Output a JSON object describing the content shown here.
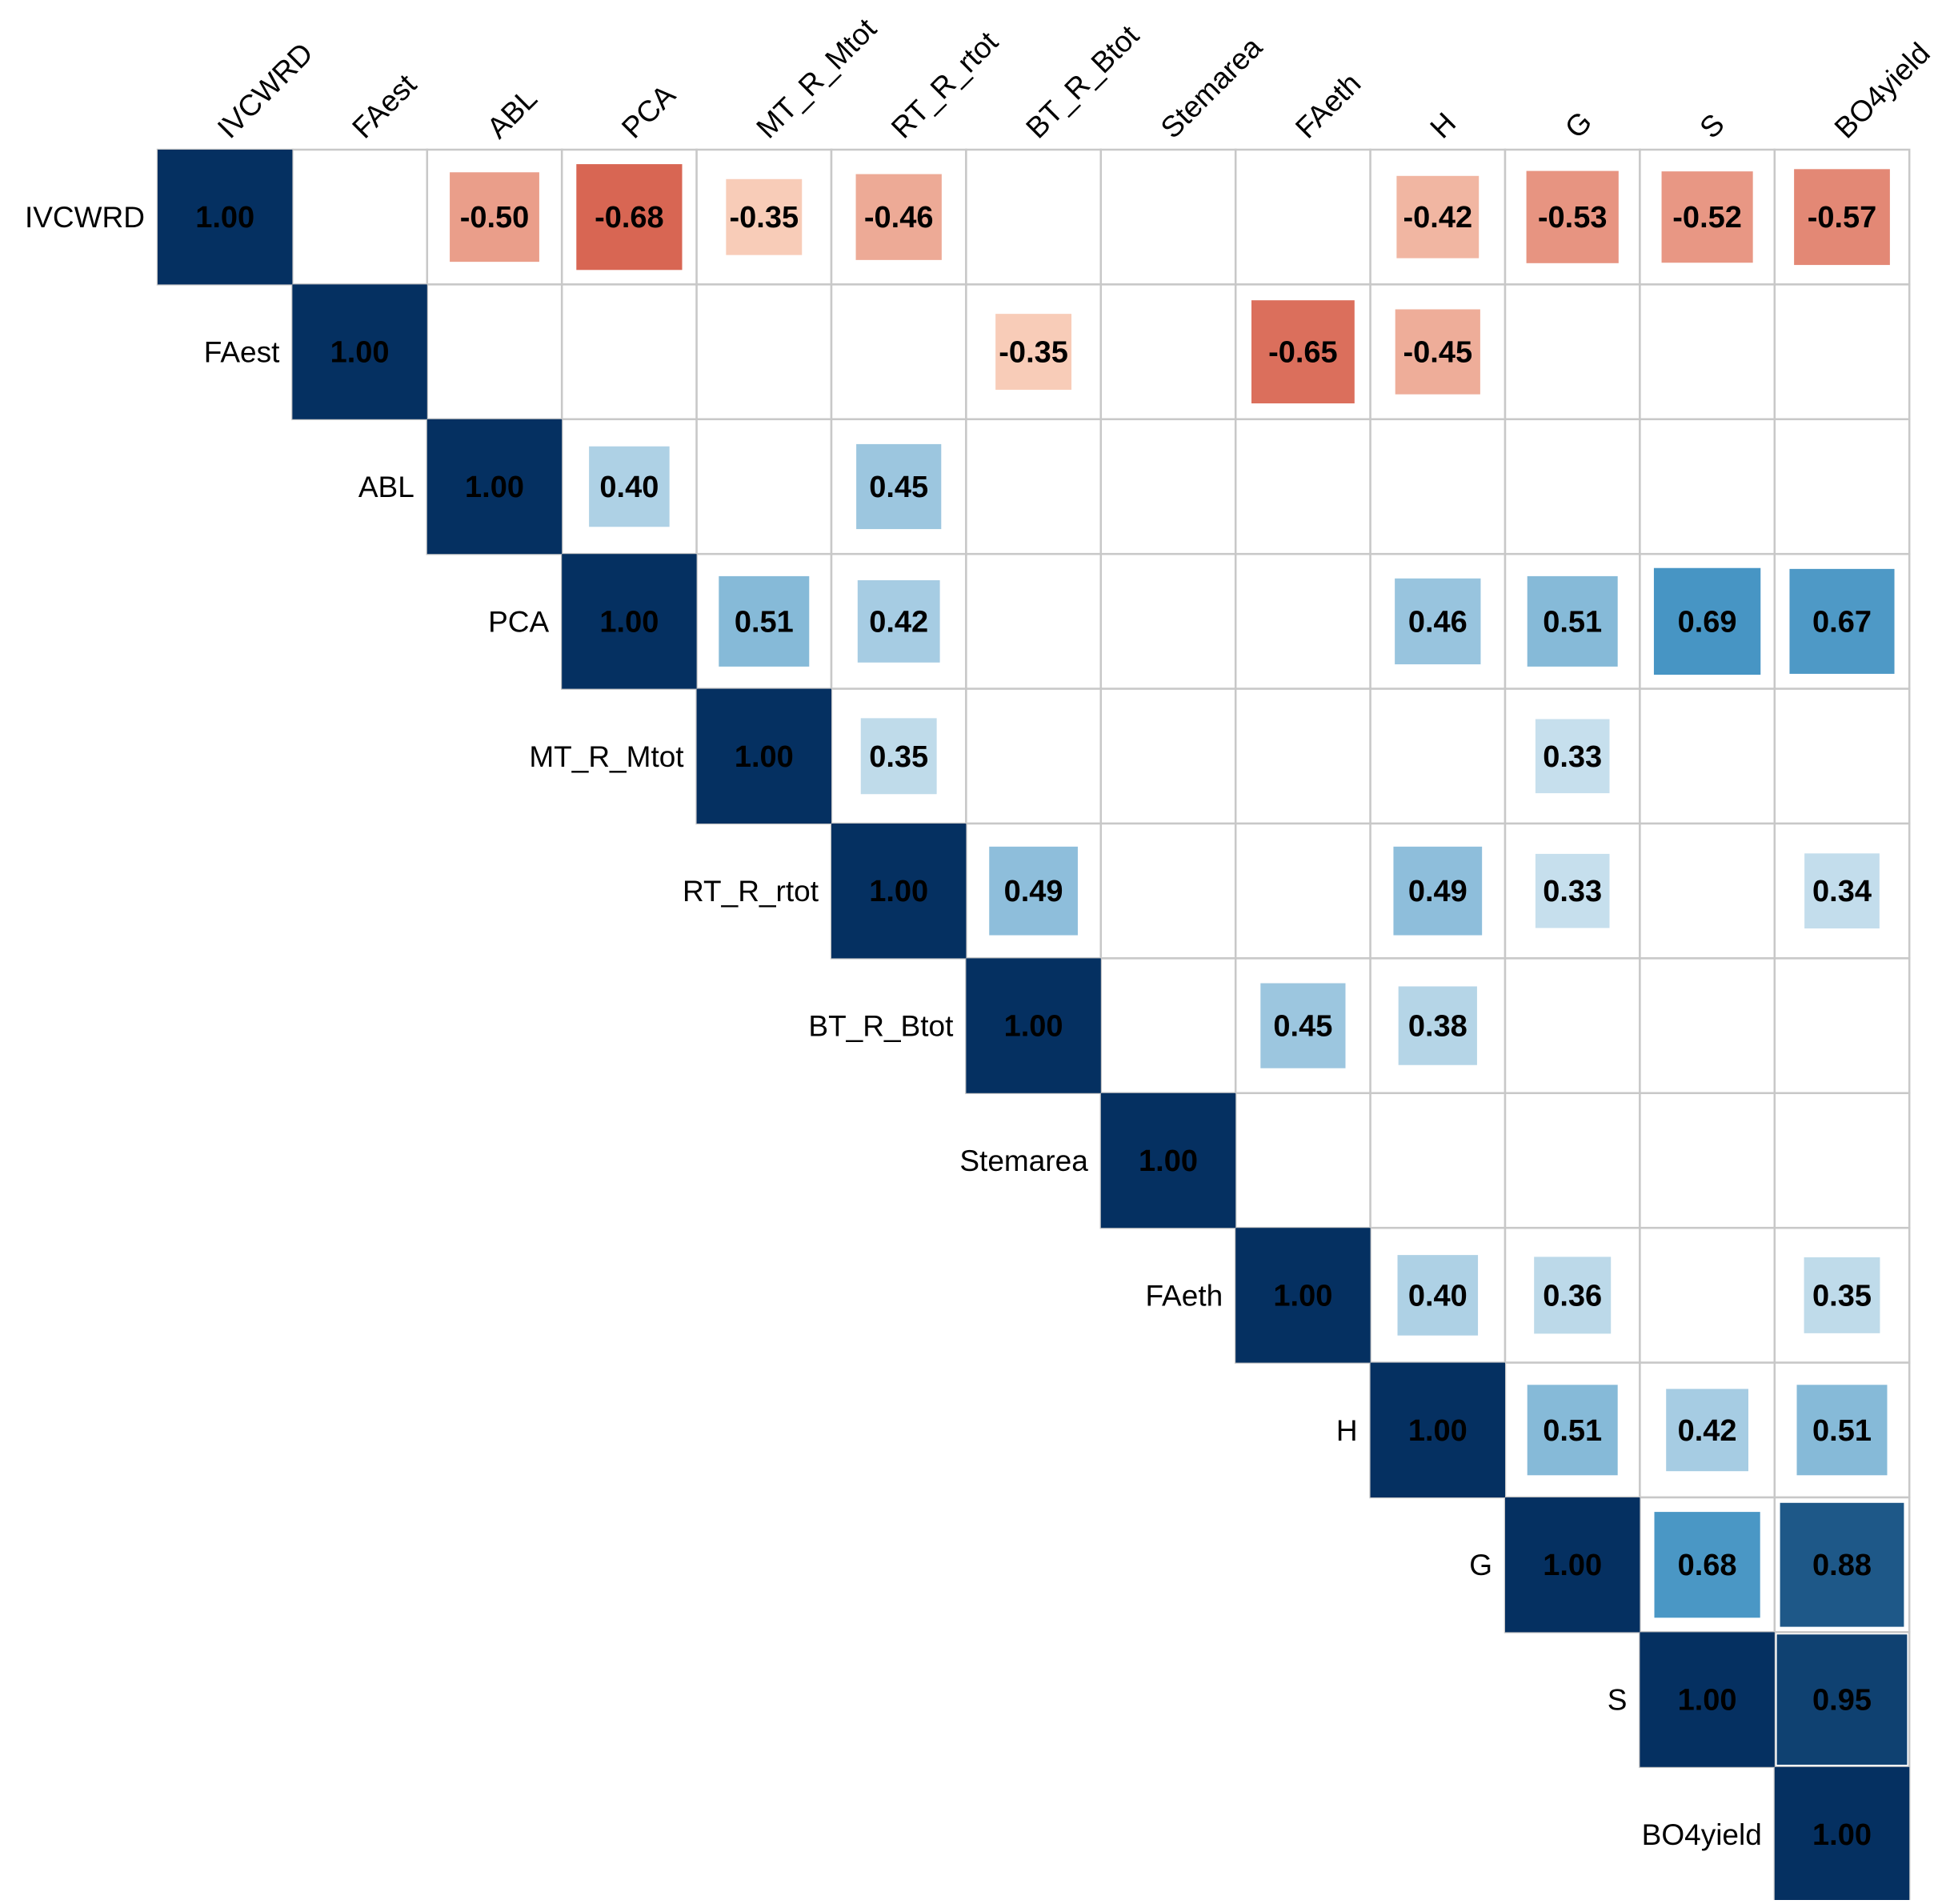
{
  "chart_data": {
    "type": "heatmap",
    "subtype": "correlation-matrix-upper-triangle",
    "title": "",
    "variables": [
      "IVCWRD",
      "FAest",
      "ABL",
      "PCA",
      "MT_R_Mtot",
      "RT_R_rtot",
      "BT_R_Btot",
      "Stemarea",
      "FAeth",
      "H",
      "G",
      "S",
      "BO4yield"
    ],
    "value_range": [
      -1,
      1
    ],
    "colors": {
      "negative_strong": "#67001f",
      "negative_mid": "#d6604d",
      "negative_light": "#fddbc7",
      "neutral": "#f7f7f7",
      "positive_light": "#d1e5f0",
      "positive_mid": "#4393c3",
      "positive_strong": "#053061",
      "grid": "#c8c8c8",
      "text": "#000000"
    },
    "cells": [
      {
        "row": "IVCWRD",
        "col": "IVCWRD",
        "value": 1.0,
        "label": "1.00"
      },
      {
        "row": "IVCWRD",
        "col": "ABL",
        "value": -0.5,
        "label": "-0.50"
      },
      {
        "row": "IVCWRD",
        "col": "PCA",
        "value": -0.68,
        "label": "-0.68"
      },
      {
        "row": "IVCWRD",
        "col": "MT_R_Mtot",
        "value": -0.35,
        "label": "-0.35"
      },
      {
        "row": "IVCWRD",
        "col": "RT_R_rtot",
        "value": -0.46,
        "label": "-0.46"
      },
      {
        "row": "IVCWRD",
        "col": "H",
        "value": -0.42,
        "label": "-0.42"
      },
      {
        "row": "IVCWRD",
        "col": "G",
        "value": -0.53,
        "label": "-0.53"
      },
      {
        "row": "IVCWRD",
        "col": "S",
        "value": -0.52,
        "label": "-0.52"
      },
      {
        "row": "IVCWRD",
        "col": "BO4yield",
        "value": -0.57,
        "label": "-0.57"
      },
      {
        "row": "FAest",
        "col": "FAest",
        "value": 1.0,
        "label": "1.00"
      },
      {
        "row": "FAest",
        "col": "BT_R_Btot",
        "value": -0.35,
        "label": "-0.35"
      },
      {
        "row": "FAest",
        "col": "FAeth",
        "value": -0.65,
        "label": "-0.65"
      },
      {
        "row": "FAest",
        "col": "H",
        "value": -0.45,
        "label": "-0.45"
      },
      {
        "row": "ABL",
        "col": "ABL",
        "value": 1.0,
        "label": "1.00"
      },
      {
        "row": "ABL",
        "col": "PCA",
        "value": 0.4,
        "label": "0.40"
      },
      {
        "row": "ABL",
        "col": "RT_R_rtot",
        "value": 0.45,
        "label": "0.45"
      },
      {
        "row": "PCA",
        "col": "PCA",
        "value": 1.0,
        "label": "1.00"
      },
      {
        "row": "PCA",
        "col": "MT_R_Mtot",
        "value": 0.51,
        "label": "0.51"
      },
      {
        "row": "PCA",
        "col": "RT_R_rtot",
        "value": 0.42,
        "label": "0.42"
      },
      {
        "row": "PCA",
        "col": "H",
        "value": 0.46,
        "label": "0.46"
      },
      {
        "row": "PCA",
        "col": "G",
        "value": 0.51,
        "label": "0.51"
      },
      {
        "row": "PCA",
        "col": "S",
        "value": 0.69,
        "label": "0.69"
      },
      {
        "row": "PCA",
        "col": "BO4yield",
        "value": 0.67,
        "label": "0.67"
      },
      {
        "row": "MT_R_Mtot",
        "col": "MT_R_Mtot",
        "value": 1.0,
        "label": "1.00"
      },
      {
        "row": "MT_R_Mtot",
        "col": "RT_R_rtot",
        "value": 0.35,
        "label": "0.35"
      },
      {
        "row": "MT_R_Mtot",
        "col": "G",
        "value": 0.33,
        "label": "0.33"
      },
      {
        "row": "RT_R_rtot",
        "col": "RT_R_rtot",
        "value": 1.0,
        "label": "1.00"
      },
      {
        "row": "RT_R_rtot",
        "col": "BT_R_Btot",
        "value": 0.49,
        "label": "0.49"
      },
      {
        "row": "RT_R_rtot",
        "col": "H",
        "value": 0.49,
        "label": "0.49"
      },
      {
        "row": "RT_R_rtot",
        "col": "G",
        "value": 0.33,
        "label": "0.33"
      },
      {
        "row": "RT_R_rtot",
        "col": "BO4yield",
        "value": 0.34,
        "label": "0.34"
      },
      {
        "row": "BT_R_Btot",
        "col": "BT_R_Btot",
        "value": 1.0,
        "label": "1.00"
      },
      {
        "row": "BT_R_Btot",
        "col": "FAeth",
        "value": 0.45,
        "label": "0.45"
      },
      {
        "row": "BT_R_Btot",
        "col": "H",
        "value": 0.38,
        "label": "0.38"
      },
      {
        "row": "Stemarea",
        "col": "Stemarea",
        "value": 1.0,
        "label": "1.00"
      },
      {
        "row": "FAeth",
        "col": "FAeth",
        "value": 1.0,
        "label": "1.00"
      },
      {
        "row": "FAeth",
        "col": "H",
        "value": 0.4,
        "label": "0.40"
      },
      {
        "row": "FAeth",
        "col": "G",
        "value": 0.36,
        "label": "0.36"
      },
      {
        "row": "FAeth",
        "col": "BO4yield",
        "value": 0.35,
        "label": "0.35"
      },
      {
        "row": "H",
        "col": "H",
        "value": 1.0,
        "label": "1.00"
      },
      {
        "row": "H",
        "col": "G",
        "value": 0.51,
        "label": "0.51"
      },
      {
        "row": "H",
        "col": "S",
        "value": 0.42,
        "label": "0.42"
      },
      {
        "row": "H",
        "col": "BO4yield",
        "value": 0.51,
        "label": "0.51"
      },
      {
        "row": "G",
        "col": "G",
        "value": 1.0,
        "label": "1.00"
      },
      {
        "row": "G",
        "col": "S",
        "value": 0.68,
        "label": "0.68"
      },
      {
        "row": "G",
        "col": "BO4yield",
        "value": 0.88,
        "label": "0.88"
      },
      {
        "row": "S",
        "col": "S",
        "value": 1.0,
        "label": "1.00"
      },
      {
        "row": "S",
        "col": "BO4yield",
        "value": 0.95,
        "label": "0.95"
      },
      {
        "row": "BO4yield",
        "col": "BO4yield",
        "value": 1.0,
        "label": "1.00"
      }
    ]
  }
}
